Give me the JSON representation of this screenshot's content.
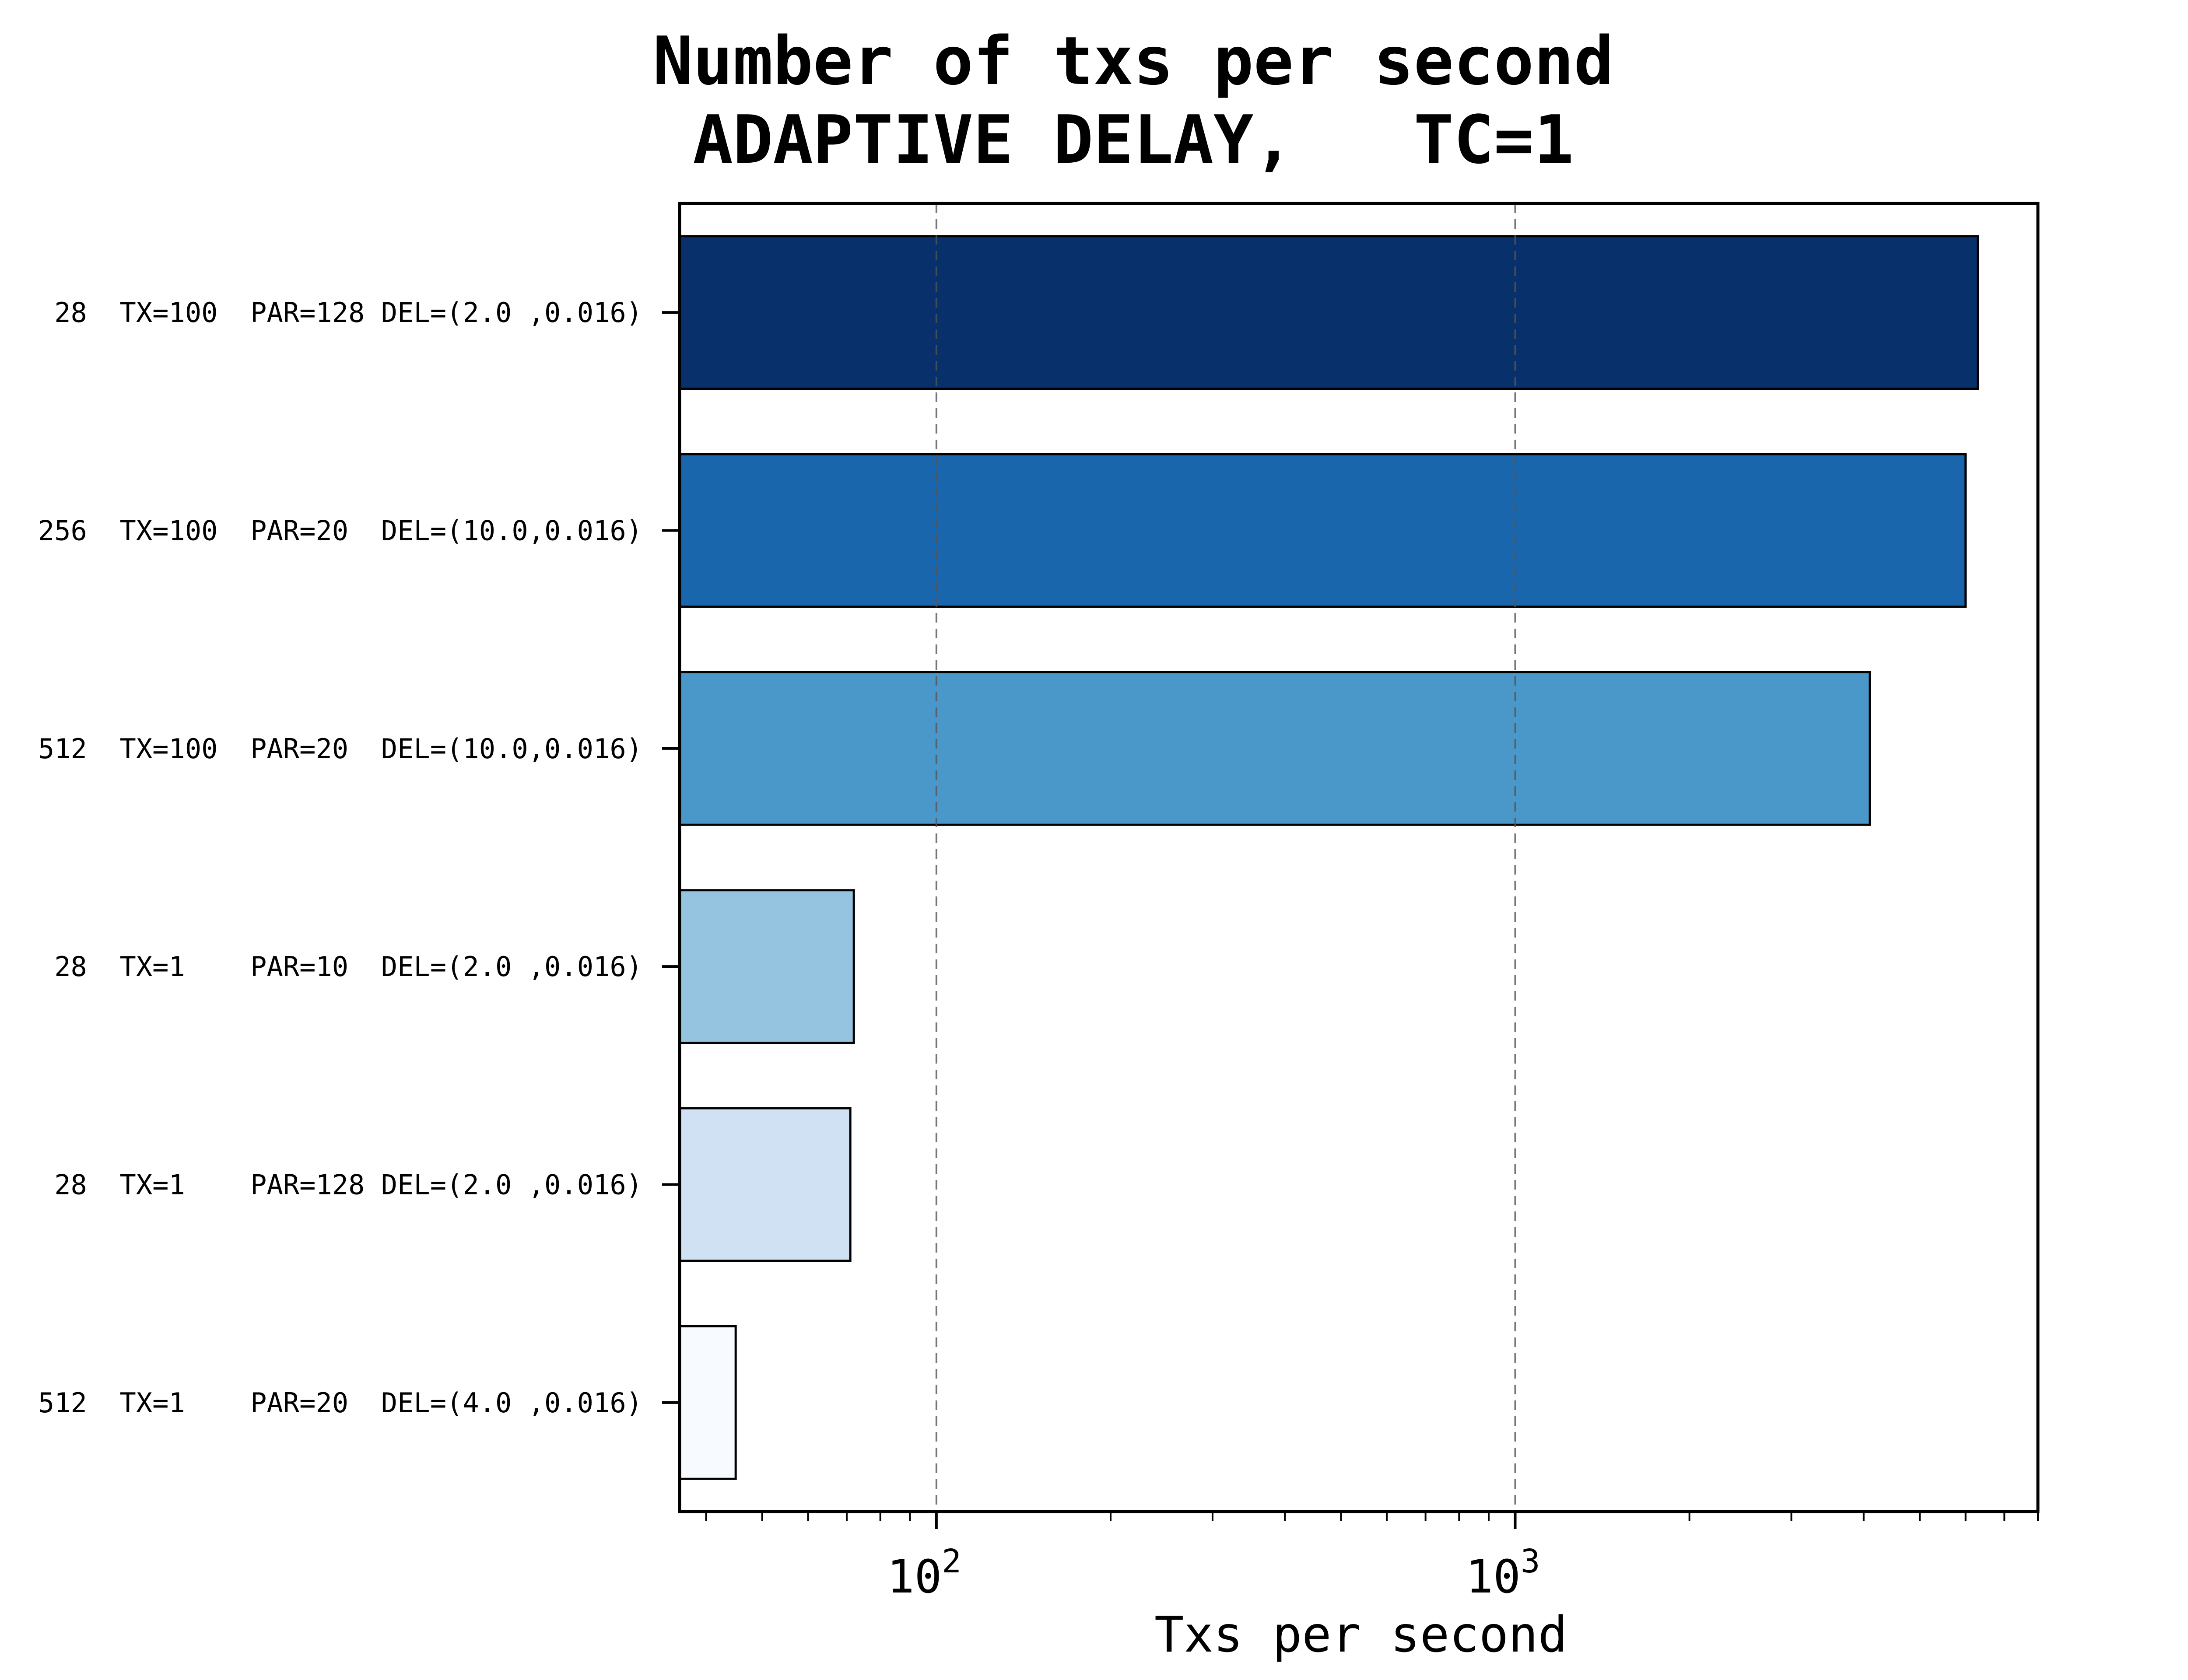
{
  "chart_data": {
    "type": "bar",
    "orientation": "horizontal",
    "title": [
      "Number of txs per second",
      "ADAPTIVE DELAY,   TC=1"
    ],
    "xlabel": "Txs per second",
    "ylabel": "",
    "xscale": "log",
    "xlim": [
      36,
      8000
    ],
    "grid": "x-major-dashed",
    "legend": "none",
    "xticks": [
      {
        "base": "10",
        "exp": "2",
        "value": 100
      },
      {
        "base": "10",
        "exp": "3",
        "value": 1000
      }
    ],
    "categories": [
      "28  TX=100  PAR=128 DEL=(2.0 ,0.016)",
      "256  TX=100  PAR=20  DEL=(10.0,0.016)",
      "512  TX=100  PAR=20  DEL=(10.0,0.016)",
      "28  TX=1    PAR=10  DEL=(2.0 ,0.016)",
      "28  TX=1    PAR=128 DEL=(2.0 ,0.016)",
      "512  TX=1    PAR=20  DEL=(4.0 ,0.016)"
    ],
    "values": [
      6300,
      6000,
      4100,
      72,
      71,
      45
    ],
    "colors": [
      "#08306b",
      "#1966ad",
      "#4a98c9",
      "#94c4df",
      "#cfe1f2",
      "#f7fbff"
    ]
  }
}
